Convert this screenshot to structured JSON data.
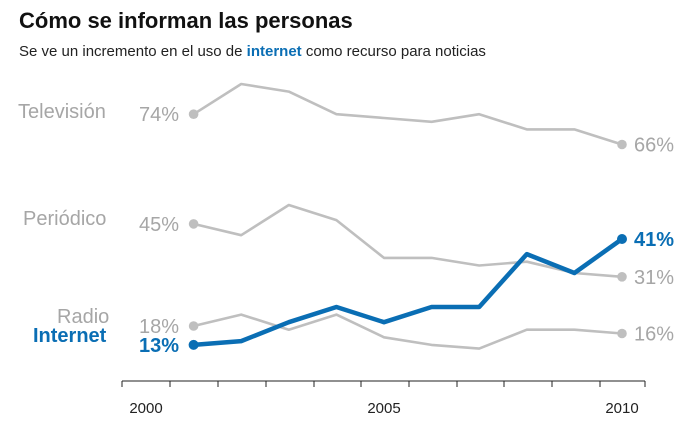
{
  "title": "Cómo se informan las personas",
  "subtitle": {
    "before": "Se ve un incremento en el uso de ",
    "highlight": "internet",
    "after": " como recurso para noticias"
  },
  "colors": {
    "context": "#bfbfbf",
    "context_text": "#a6a6a6",
    "highlight": "#0a6eb4",
    "axis": "#222222"
  },
  "chart_data": {
    "type": "line",
    "x": [
      2001,
      2002,
      2003,
      2004,
      2005,
      2006,
      2007,
      2008,
      2009,
      2010
    ],
    "xlim": [
      2000,
      2010
    ],
    "ylim": [
      0,
      82
    ],
    "x_ticks": [
      "2000",
      "2005",
      "2010"
    ],
    "grid": false,
    "legend": "direct labels",
    "series": [
      {
        "name": "Televisión",
        "values": [
          74,
          82,
          80,
          74,
          73,
          72,
          74,
          70,
          70,
          66
        ],
        "start_label": "74%",
        "end_label": "66%",
        "highlight": false
      },
      {
        "name": "Periódico",
        "values": [
          45,
          42,
          50,
          46,
          36,
          36,
          34,
          35,
          32,
          31
        ],
        "start_label": "45%",
        "end_label": "31%",
        "highlight": false
      },
      {
        "name": "Radio",
        "values": [
          18,
          21,
          17,
          21,
          15,
          13,
          12,
          17,
          17,
          16
        ],
        "start_label": "18%",
        "end_label": "16%",
        "highlight": false
      },
      {
        "name": "Internet",
        "values": [
          13,
          14,
          19,
          23,
          19,
          23,
          23,
          37,
          32,
          41
        ],
        "start_label": "13%",
        "end_label": "41%",
        "highlight": true
      }
    ]
  }
}
